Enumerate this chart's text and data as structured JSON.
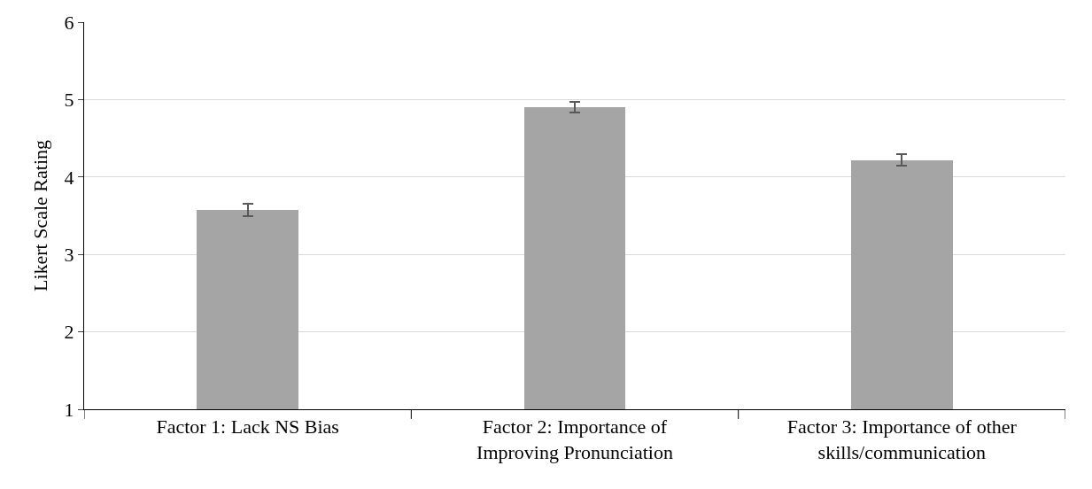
{
  "chart_data": {
    "type": "bar",
    "ylabel": "Likert Scale Rating",
    "categories": [
      "Factor 1: Lack NS Bias",
      "Factor 2: Importance of Improving Pronunciation",
      "Factor 3: Importance of other skills/communication"
    ],
    "values": [
      3.57,
      4.9,
      4.22
    ],
    "errors": [
      0.08,
      0.07,
      0.07
    ],
    "color": "#a5a5a5",
    "ylim": [
      1,
      6
    ],
    "yticks": [
      1,
      2,
      3,
      4,
      5,
      6
    ],
    "grid": "y"
  }
}
